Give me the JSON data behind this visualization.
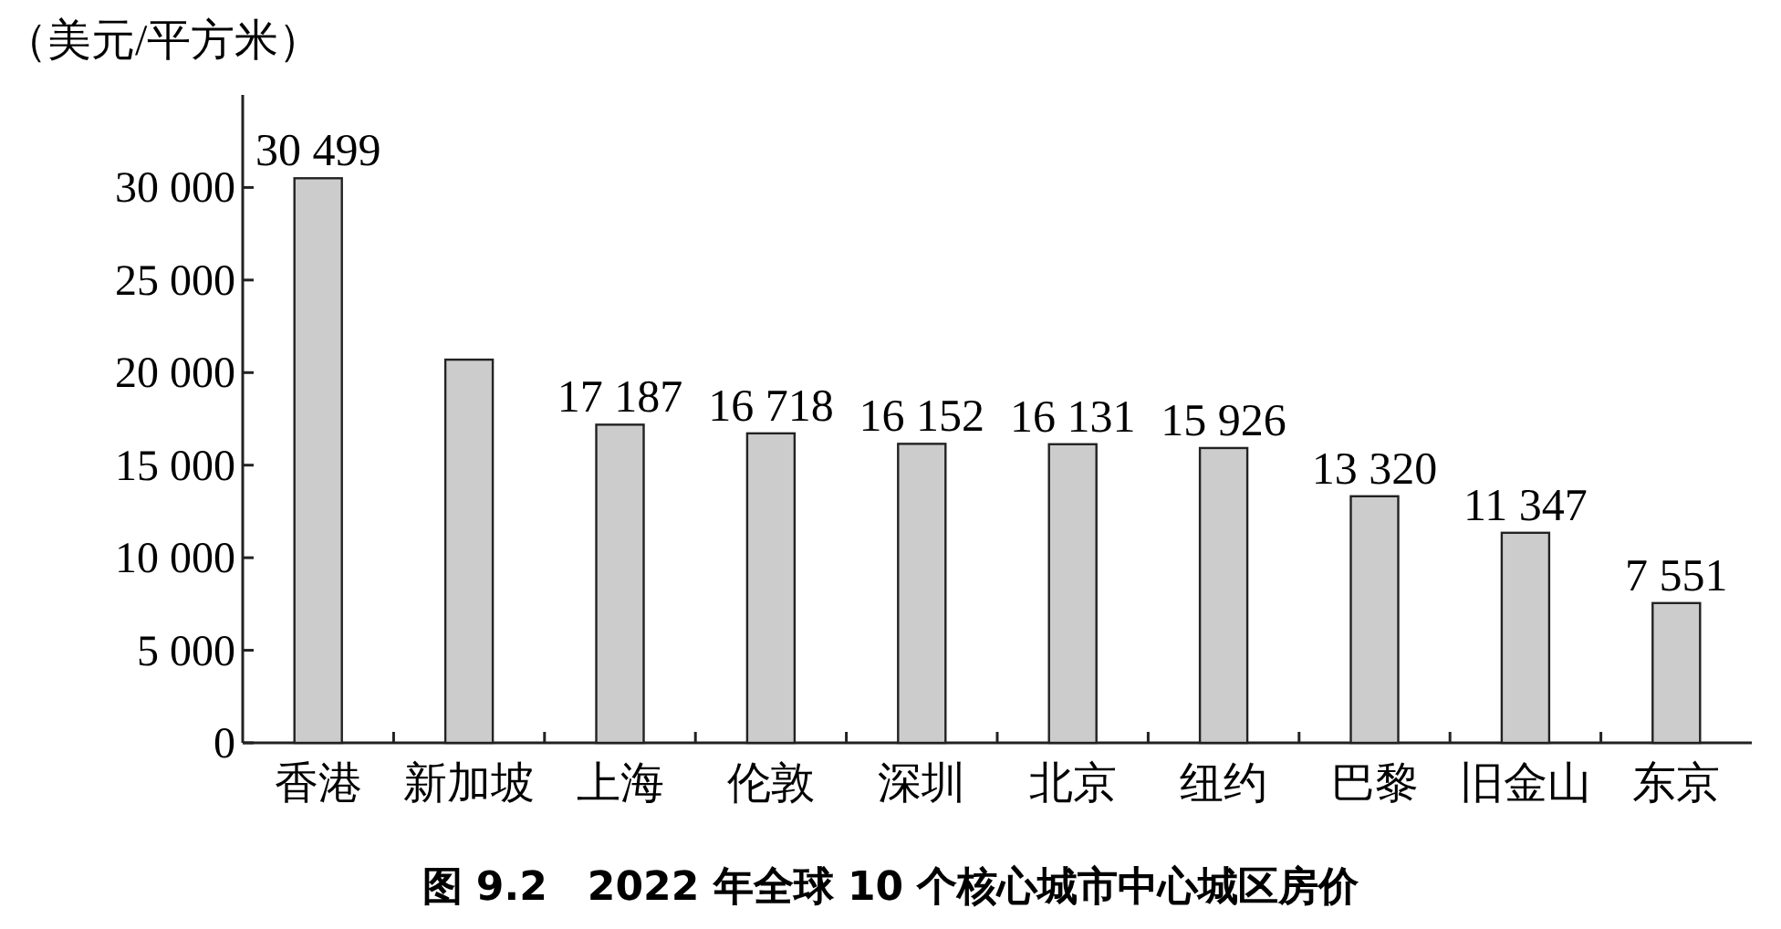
{
  "chart_data": {
    "type": "bar",
    "title": "图 9.2　2022 年全球 10 个核心城市中心城区房价",
    "ylabel": "（美元/平方米）",
    "categories": [
      "香港",
      "新加坡",
      "上海",
      "伦敦",
      "深圳",
      "北京",
      "纽约",
      "巴黎",
      "旧金山",
      "东京"
    ],
    "values": [
      30499,
      20700,
      17187,
      16718,
      16152,
      16131,
      15926,
      13320,
      11347,
      7551
    ],
    "value_labels": [
      "30 499",
      null,
      "17 187",
      "16 718",
      "16 152",
      "16 131",
      "15 926",
      "13 320",
      "11 347",
      "7 551"
    ],
    "color": "#cccccc",
    "ylim": [
      0,
      35000
    ],
    "yticks": [
      {
        "value": 0,
        "label": "0"
      },
      {
        "value": 5000,
        "label": "5 000"
      },
      {
        "value": 10000,
        "label": "10 000"
      },
      {
        "value": 15000,
        "label": "15 000"
      },
      {
        "value": 20000,
        "label": "20 000"
      },
      {
        "value": 25000,
        "label": "25 000"
      },
      {
        "value": 30000,
        "label": "30 000"
      }
    ],
    "grid": false
  }
}
